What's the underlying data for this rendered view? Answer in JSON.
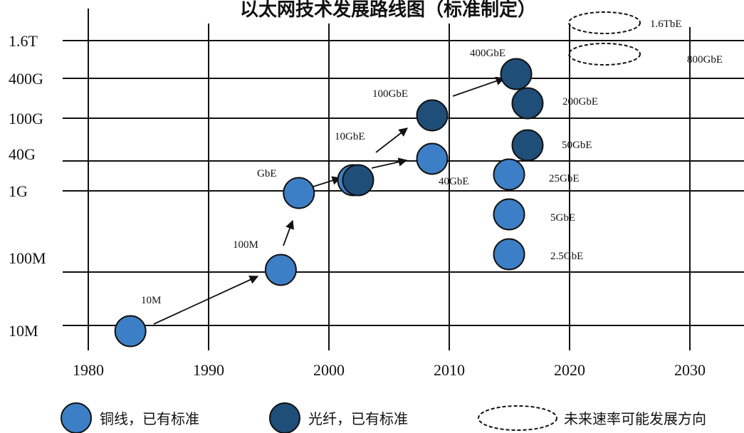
{
  "chart_data": {
    "type": "scatter",
    "title": "以太网技术发展路线图（标准制定）",
    "x_ticks": [
      "1980",
      "1990",
      "2000",
      "2010",
      "2020",
      "2030"
    ],
    "y_ticks": [
      "10M",
      "100M",
      "1G",
      "40G",
      "100G",
      "400G",
      "1.6T"
    ],
    "xlim": [
      1980,
      2030
    ],
    "grid": true,
    "series": [
      {
        "name": "铜线，已有标准",
        "color": "#3d7fc6",
        "points": [
          {
            "label": "10M",
            "year": 1983.5,
            "speed": "10M"
          },
          {
            "label": "100M",
            "year": 1996,
            "speed": "100M"
          },
          {
            "label": "GbE",
            "year": 1997.5,
            "speed": "1G"
          },
          {
            "label": "10GbE",
            "year": 2002.5,
            "speed": "10G"
          },
          {
            "label": "40GbE",
            "year": 2010.5,
            "speed": "40G"
          },
          {
            "label": "25GbE",
            "year": 2017,
            "speed": "25G"
          },
          {
            "label": "5GbE",
            "year": 2017,
            "speed": "5G"
          },
          {
            "label": "2.5GbE",
            "year": 2017,
            "speed": "2.5G"
          }
        ]
      },
      {
        "name": "光纤，已有标准",
        "color": "#1f4e79",
        "points": [
          {
            "label": "",
            "year": 2003,
            "speed": "10G"
          },
          {
            "label": "100GbE",
            "year": 2010.5,
            "speed": "100G"
          },
          {
            "label": "400GbE",
            "year": 2017.5,
            "speed": "400G"
          },
          {
            "label": "200GbE",
            "year": 2018.5,
            "speed": "200G"
          },
          {
            "label": "50GbE",
            "year": 2018.5,
            "speed": "50G"
          }
        ]
      },
      {
        "name": "未来速率可能发展方向",
        "color": "#ffffff",
        "points": [
          {
            "label": "1.6TbE",
            "year": 2023,
            "speed": "1.6T"
          },
          {
            "label": "800GbE",
            "year": 2023,
            "speed": "800G"
          }
        ]
      }
    ]
  }
}
